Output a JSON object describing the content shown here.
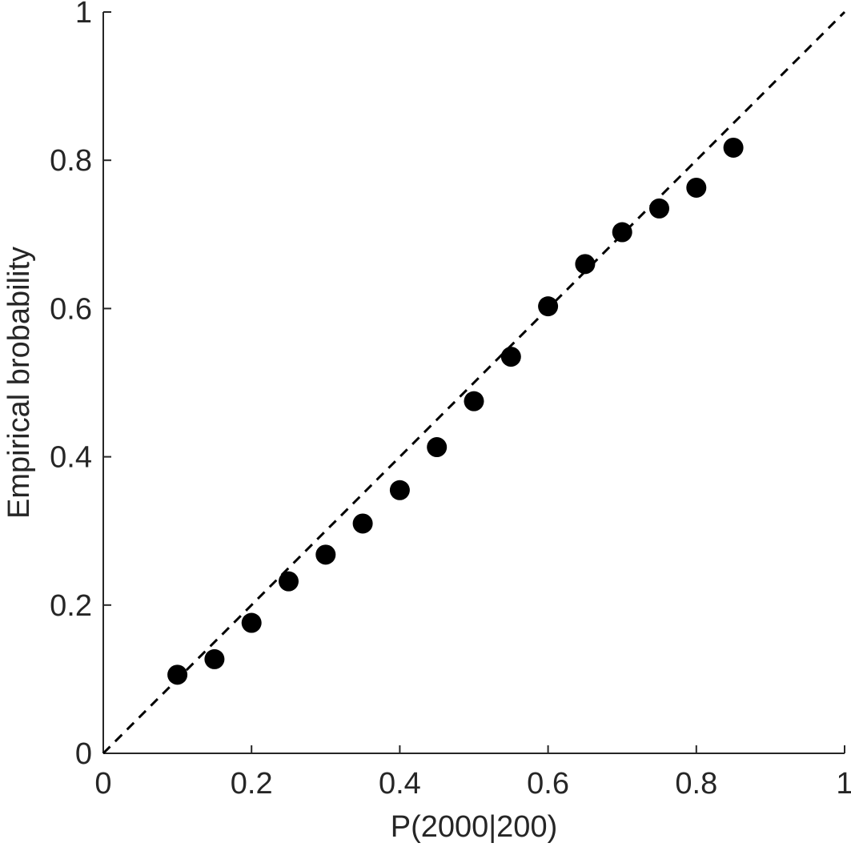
{
  "chart_data": {
    "type": "scatter",
    "title": "",
    "xlabel": "P(2000|200)",
    "ylabel": "Empirical brobability",
    "xlim": [
      0,
      1
    ],
    "ylim": [
      0,
      1
    ],
    "xticks": [
      0,
      0.2,
      0.4,
      0.6,
      0.8,
      1
    ],
    "yticks": [
      0,
      0.2,
      0.4,
      0.6,
      0.8,
      1
    ],
    "xtick_labels": [
      "0",
      "0.2",
      "0.4",
      "0.6",
      "0.8",
      "1"
    ],
    "ytick_labels": [
      "0",
      "0.2",
      "0.4",
      "0.6",
      "0.8",
      "1"
    ],
    "grid": false,
    "reference_line": {
      "style": "dashed",
      "from": [
        0,
        0
      ],
      "to": [
        1,
        1
      ]
    },
    "series": [
      {
        "marker": "filled-circle",
        "color": "#000000",
        "x": [
          0.1,
          0.15,
          0.2,
          0.25,
          0.3,
          0.35,
          0.4,
          0.45,
          0.5,
          0.55,
          0.6,
          0.65,
          0.7,
          0.75,
          0.8,
          0.85
        ],
        "y": [
          0.106,
          0.127,
          0.176,
          0.232,
          0.268,
          0.31,
          0.355,
          0.413,
          0.475,
          0.535,
          0.603,
          0.66,
          0.703,
          0.735,
          0.763,
          0.817
        ]
      }
    ]
  }
}
